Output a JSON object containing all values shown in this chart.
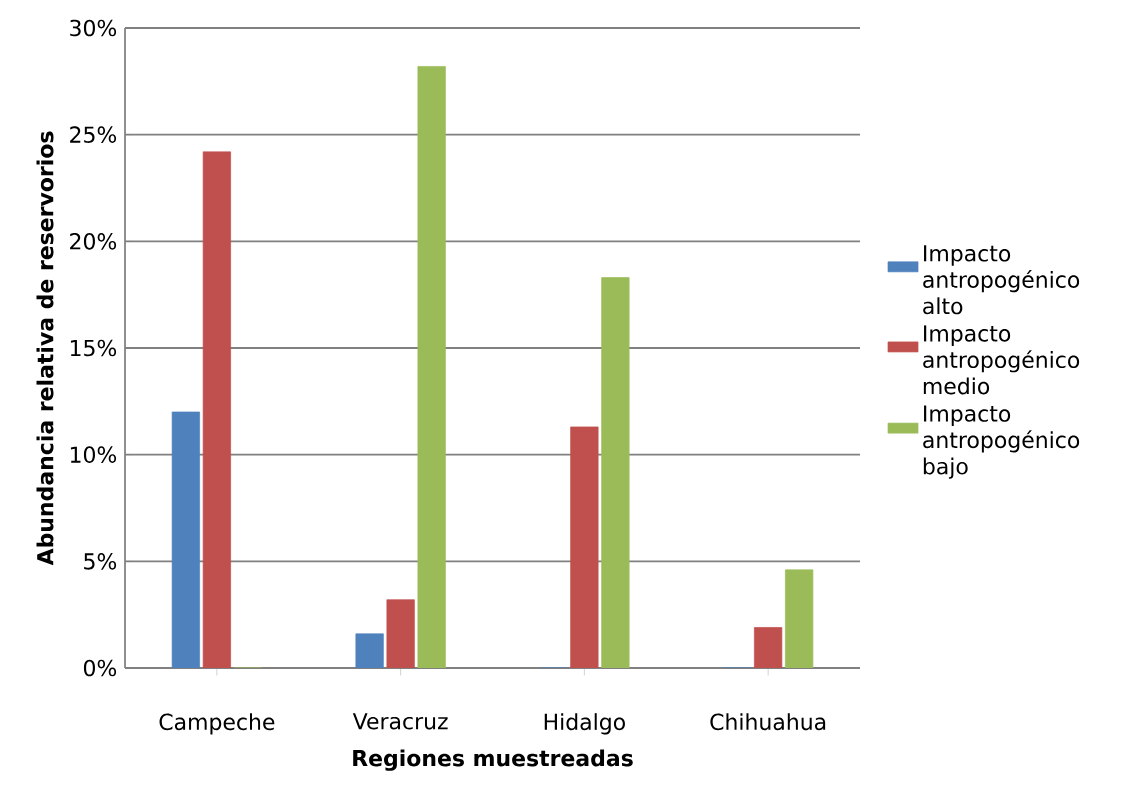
{
  "chart_data": {
    "type": "bar",
    "xlabel": "Regiones muestreadas",
    "ylabel": "Abundancia relativa de reservorios",
    "categories": [
      "Campeche",
      "Veracruz",
      "Hidalgo",
      "Chihuahua"
    ],
    "series": [
      {
        "name": "Impacto antropogénico alto",
        "color": "#4f81bd",
        "values": [
          12,
          1.6,
          0,
          0
        ]
      },
      {
        "name": "Impacto antropogénico medio",
        "color": "#c0504d",
        "values": [
          24.2,
          3.2,
          11.3,
          1.9
        ]
      },
      {
        "name": "Impacto antropogénico bajo",
        "color": "#9bbb59",
        "values": [
          0,
          28.2,
          18.3,
          4.6
        ]
      }
    ],
    "ylim": [
      0,
      30
    ],
    "yticks": [
      {
        "value": 0,
        "label": "0%"
      },
      {
        "value": 5,
        "label": "5%"
      },
      {
        "value": 10,
        "label": "10%"
      },
      {
        "value": 15,
        "label": "15%"
      },
      {
        "value": 20,
        "label": "20%"
      },
      {
        "value": 25,
        "label": "25%"
      },
      {
        "value": 30,
        "label": "30%"
      }
    ],
    "grid": "y",
    "legend": "right"
  }
}
